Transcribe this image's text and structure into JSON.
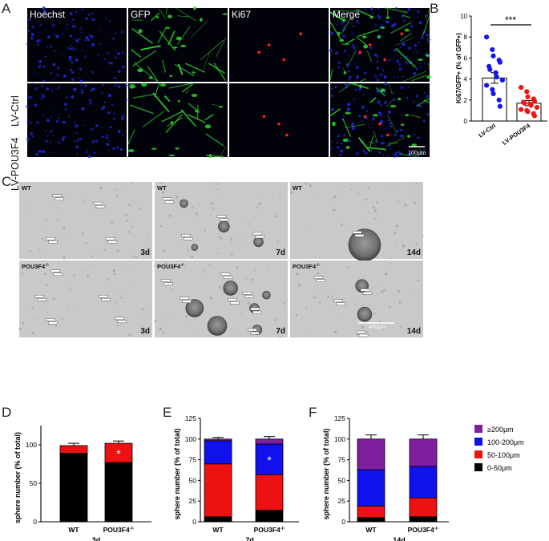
{
  "panel_labels": [
    "A",
    "B",
    "C",
    "D",
    "E",
    "F"
  ],
  "panel_a": {
    "column_titles": [
      "Hoechst",
      "GFP",
      "Ki67",
      "Merge"
    ],
    "row_labels": [
      "LV-Ctrl",
      "LV-POU3F4"
    ],
    "scale_bar": "100μm",
    "colors": {
      "hoechst": "#1a2bd6",
      "gfp": "#2fd32f",
      "ki67": "#ff2020",
      "background": "#02020a"
    }
  },
  "panel_c": {
    "tiles": [
      {
        "label": "WT",
        "day": "3d"
      },
      {
        "label": "WT",
        "day": "7d"
      },
      {
        "label": "WT",
        "day": ""
      },
      {
        "label": "POU3F4",
        "day": "3d"
      },
      {
        "label": "POU3F4",
        "day": "7d"
      },
      {
        "label": "POU3F4",
        "day": ""
      }
    ],
    "last_day_label": "14d",
    "genotype_superscript": "-/-",
    "scale_bar": "400μm",
    "tile_background": "#c9c9c9"
  },
  "legend": {
    "entries": [
      {
        "label": "≥200μm",
        "color": "#7e1fa0"
      },
      {
        "label": "100-200μm",
        "color": "#1111ee"
      },
      {
        "label": "50-100μm",
        "color": "#ee1111"
      },
      {
        "label": "0-50μm",
        "color": "#000000"
      }
    ]
  },
  "chart_data": [
    {
      "panel": "B",
      "type": "scatter",
      "title": "",
      "ylabel": "Ki67/GFP+ (% of GFP+)",
      "ylim": [
        0,
        10
      ],
      "yticks": [
        0,
        2,
        4,
        6,
        8,
        10
      ],
      "categories": [
        "LV-Ctrl",
        "LV-POU3F4"
      ],
      "means": [
        4.1,
        1.7
      ],
      "sem": [
        0.5,
        0.25
      ],
      "colors": [
        "#1515ee",
        "#ee1515"
      ],
      "points": [
        [
          8.0,
          6.8,
          6.2,
          5.8,
          5.6,
          5.2,
          4.9,
          4.6,
          4.2,
          3.9,
          3.4,
          3.0,
          2.6,
          2.0,
          1.4
        ],
        [
          3.2,
          2.8,
          2.3,
          2.1,
          1.9,
          1.8,
          1.7,
          1.6,
          1.5,
          1.3,
          1.1,
          1.0,
          0.9,
          0.7,
          0.5
        ]
      ],
      "significance": "***"
    },
    {
      "panel": "D",
      "type": "bar",
      "title": "3d",
      "ylabel": "sphere number (% of total)",
      "ylim": [
        0,
        125
      ],
      "yticks": [
        0,
        50,
        100
      ],
      "categories": [
        "WT",
        "POU3F4"
      ],
      "category_superscripts": [
        "",
        "-/-"
      ],
      "series": [
        {
          "name": "0-50μm",
          "values": [
            89,
            77
          ],
          "err": [
            0,
            2
          ]
        },
        {
          "name": "50-100μm",
          "values": [
            10,
            25
          ],
          "err": [
            0,
            0
          ]
        },
        {
          "name": "100-200μm",
          "values": [
            0,
            0
          ],
          "err": [
            0,
            0
          ]
        },
        {
          "name": "≥200μm",
          "values": [
            0,
            0
          ],
          "err": [
            0,
            0
          ]
        }
      ],
      "top_err": [
        3,
        3
      ],
      "significance": [
        {
          "category": 1,
          "series": 1,
          "mark": "*"
        }
      ]
    },
    {
      "panel": "E",
      "type": "bar",
      "title": "7d",
      "ylabel": "sphere number (% of total)",
      "ylim": [
        0,
        125
      ],
      "yticks": [
        0,
        25,
        50,
        75,
        100,
        125
      ],
      "categories": [
        "WT",
        "POU3F4"
      ],
      "category_superscripts": [
        "",
        "-/-"
      ],
      "series": [
        {
          "name": "0-50μm",
          "values": [
            6,
            14
          ],
          "err": [
            4,
            2
          ]
        },
        {
          "name": "50-100μm",
          "values": [
            64,
            43
          ],
          "err": [
            3,
            3
          ]
        },
        {
          "name": "100-200μm",
          "values": [
            28,
            37
          ],
          "err": [
            0,
            3
          ]
        },
        {
          "name": "≥200μm",
          "values": [
            2,
            6
          ],
          "err": [
            0,
            0
          ]
        }
      ],
      "top_err": [
        2,
        3
      ],
      "significance": [
        {
          "category": 1,
          "series": 2,
          "mark": "*"
        }
      ]
    },
    {
      "panel": "F",
      "type": "bar",
      "title": "14d",
      "ylabel": "sphere number (% of total)",
      "ylim": [
        0,
        125
      ],
      "yticks": [
        0,
        25,
        50,
        75,
        100,
        125
      ],
      "categories": [
        "WT",
        "POU3F4"
      ],
      "category_superscripts": [
        "",
        "-/-"
      ],
      "series": [
        {
          "name": "0-50μm",
          "values": [
            5,
            6
          ],
          "err": [
            3,
            3
          ]
        },
        {
          "name": "50-100μm",
          "values": [
            14,
            23
          ],
          "err": [
            3,
            3
          ]
        },
        {
          "name": "100-200μm",
          "values": [
            44,
            38
          ],
          "err": [
            5,
            3
          ]
        },
        {
          "name": "≥200μm",
          "values": [
            37,
            33
          ],
          "err": [
            0,
            0
          ]
        }
      ],
      "top_err": [
        5,
        5
      ],
      "significance": []
    }
  ]
}
